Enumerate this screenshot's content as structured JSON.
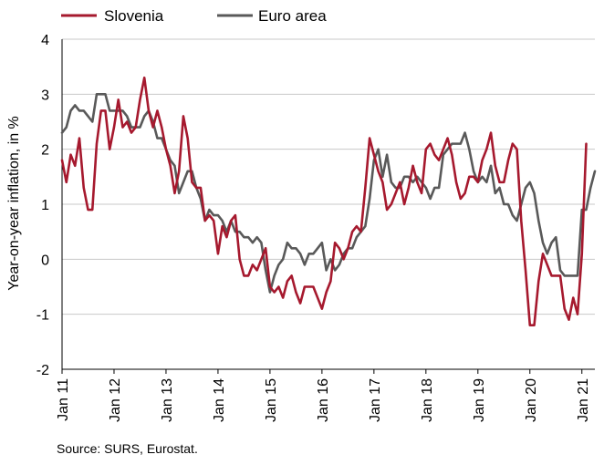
{
  "chart_data": {
    "type": "line",
    "ylabel": "Year-on-year inflation, in %",
    "xlabel": "",
    "ylim": [
      -2,
      4
    ],
    "yticks": [
      "4",
      "3",
      "2",
      "1",
      "0",
      "-1",
      "-2"
    ],
    "grid": true,
    "legend_position": "top-left",
    "x_start": "2011-01",
    "x_end": "2021-04",
    "x_tick_labels": [
      "Jan 11",
      "Jan 12",
      "Jan 13",
      "Jan 14",
      "Jan 15",
      "Jan 16",
      "Jan 17",
      "Jan 18",
      "Jan 19",
      "Jan 20",
      "Jan 21"
    ],
    "series": [
      {
        "name": "Slovenia",
        "color": "#a6192e",
        "values": [
          1.8,
          1.4,
          1.9,
          1.7,
          2.2,
          1.3,
          0.9,
          0.9,
          2.1,
          2.7,
          2.7,
          2.0,
          2.4,
          2.9,
          2.4,
          2.5,
          2.3,
          2.4,
          2.9,
          3.3,
          2.7,
          2.4,
          2.7,
          2.4,
          2.0,
          1.7,
          1.2,
          1.6,
          2.6,
          2.2,
          1.4,
          1.3,
          1.3,
          0.7,
          0.8,
          0.7,
          0.1,
          0.6,
          0.4,
          0.7,
          0.8,
          0.0,
          -0.3,
          -0.3,
          -0.1,
          -0.2,
          0.0,
          0.2,
          -0.5,
          -0.6,
          -0.5,
          -0.7,
          -0.4,
          -0.3,
          -0.6,
          -0.8,
          -0.5,
          -0.5,
          -0.5,
          -0.7,
          -0.9,
          -0.6,
          -0.4,
          0.3,
          0.2,
          0.0,
          0.2,
          0.5,
          0.6,
          0.5,
          1.3,
          2.2,
          1.9,
          1.6,
          1.4,
          0.9,
          1.0,
          1.2,
          1.4,
          1.0,
          1.3,
          1.7,
          1.4,
          1.2,
          2.0,
          2.1,
          1.9,
          1.8,
          2.0,
          2.2,
          1.9,
          1.4,
          1.1,
          1.2,
          1.5,
          1.5,
          1.4,
          1.8,
          2.0,
          2.3,
          1.7,
          1.4,
          1.4,
          1.8,
          2.1,
          2.0,
          0.7,
          -0.2,
          -1.2,
          -1.2,
          -0.4,
          0.1,
          -0.1,
          -0.3,
          -0.3,
          -0.3,
          -0.9,
          -1.1,
          -0.7,
          -1.0,
          0.1,
          2.1
        ]
      },
      {
        "name": "Euro area",
        "color": "#595959",
        "values": [
          2.3,
          2.4,
          2.7,
          2.8,
          2.7,
          2.7,
          2.6,
          2.5,
          3.0,
          3.0,
          3.0,
          2.7,
          2.7,
          2.7,
          2.7,
          2.6,
          2.4,
          2.4,
          2.4,
          2.6,
          2.7,
          2.5,
          2.2,
          2.2,
          2.0,
          1.8,
          1.7,
          1.2,
          1.4,
          1.6,
          1.6,
          1.3,
          1.1,
          0.7,
          0.9,
          0.8,
          0.8,
          0.7,
          0.5,
          0.7,
          0.5,
          0.5,
          0.4,
          0.4,
          0.3,
          0.4,
          0.3,
          -0.2,
          -0.6,
          -0.3,
          -0.1,
          0.0,
          0.3,
          0.2,
          0.2,
          0.1,
          -0.1,
          0.1,
          0.1,
          0.2,
          0.3,
          -0.2,
          0.0,
          -0.2,
          -0.1,
          0.1,
          0.2,
          0.2,
          0.4,
          0.5,
          0.6,
          1.1,
          1.8,
          2.0,
          1.5,
          1.9,
          1.4,
          1.3,
          1.3,
          1.5,
          1.5,
          1.4,
          1.5,
          1.4,
          1.3,
          1.1,
          1.3,
          1.3,
          1.9,
          2.0,
          2.1,
          2.1,
          2.1,
          2.3,
          2.0,
          1.6,
          1.4,
          1.5,
          1.4,
          1.7,
          1.2,
          1.3,
          1.0,
          1.0,
          0.8,
          0.7,
          1.0,
          1.3,
          1.4,
          1.2,
          0.7,
          0.3,
          0.1,
          0.3,
          0.4,
          -0.2,
          -0.3,
          -0.3,
          -0.3,
          -0.3,
          0.9,
          0.9,
          1.3,
          1.6
        ]
      }
    ]
  },
  "source_note": "Source: SURS, Eurostat."
}
